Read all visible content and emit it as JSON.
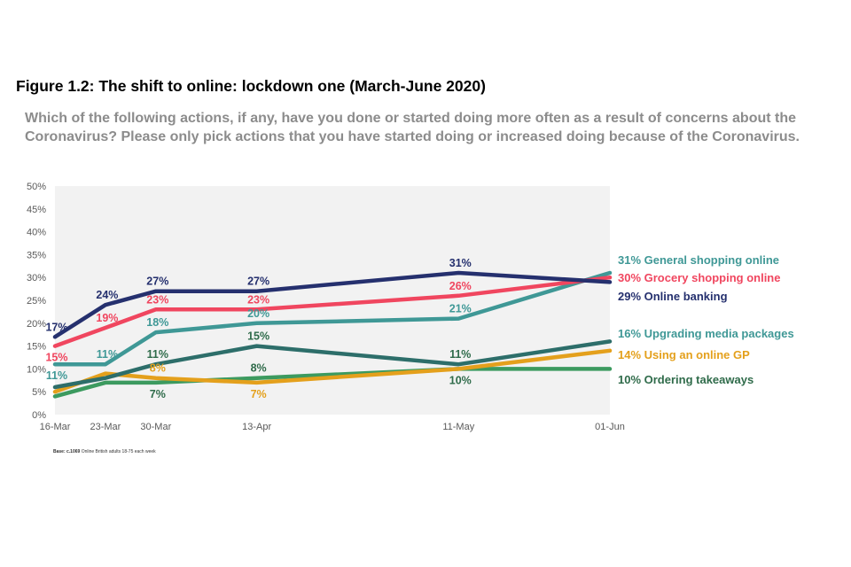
{
  "figure": {
    "title": "Figure 1.2: The shift to online: lockdown one (March-June 2020)",
    "question": "Which of the following actions, if any, have you done or started doing more often as a result of concerns about the Coronavirus? Please only pick actions that you have started doing or increased doing because of the Coronavirus.",
    "base_label": "Base: c.1069",
    "base_text": " Online British adults 18-75 each week"
  },
  "chart_data": {
    "type": "line",
    "title": "The shift to online: lockdown one (March-June 2020)",
    "xlabel": "",
    "ylabel": "",
    "x": [
      "16-Mar",
      "23-Mar",
      "30-Mar",
      "13-Apr",
      "11-May",
      "01-Jun"
    ],
    "x_days": [
      0,
      7,
      14,
      28,
      56,
      77
    ],
    "ylim": [
      0,
      50
    ],
    "yticks": [
      "0%",
      "5%",
      "10%",
      "15%",
      "20%",
      "25%",
      "30%",
      "35%",
      "40%",
      "45%",
      "50%"
    ],
    "grid": false,
    "legend_placement": "right (end labels)",
    "series": [
      {
        "name": "Online banking",
        "color": "#25306e",
        "label_color": "#25306e",
        "values": [
          17,
          24,
          27,
          27,
          31,
          29
        ],
        "labels": [
          {
            "i": 0,
            "text": "17%",
            "pos": "above"
          },
          {
            "i": 1,
            "text": "24%",
            "pos": "above"
          },
          {
            "i": 2,
            "text": "27%",
            "pos": "above"
          },
          {
            "i": 3,
            "text": "27%",
            "pos": "above"
          },
          {
            "i": 4,
            "text": "31%",
            "pos": "above"
          }
        ],
        "end_label": "29% Online banking"
      },
      {
        "name": "Grocery shopping online",
        "color": "#f0465f",
        "label_color": "#f0465f",
        "values": [
          15,
          19,
          23,
          23,
          26,
          30
        ],
        "labels": [
          {
            "i": 0,
            "text": "15%",
            "pos": "below"
          },
          {
            "i": 1,
            "text": "19%",
            "pos": "above"
          },
          {
            "i": 2,
            "text": "23%",
            "pos": "above"
          },
          {
            "i": 3,
            "text": "23%",
            "pos": "above"
          },
          {
            "i": 4,
            "text": "26%",
            "pos": "above"
          }
        ],
        "end_label": "30% Grocery shopping online"
      },
      {
        "name": "General shopping online",
        "color": "#3f9896",
        "label_color": "#3f9896",
        "values": [
          11,
          11,
          18,
          20,
          21,
          31
        ],
        "labels": [
          {
            "i": 0,
            "text": "11%",
            "pos": "below"
          },
          {
            "i": 1,
            "text": "11%",
            "pos": "above"
          },
          {
            "i": 2,
            "text": "18%",
            "pos": "above"
          },
          {
            "i": 3,
            "text": "20%",
            "pos": "above"
          },
          {
            "i": 4,
            "text": "21%",
            "pos": "above"
          }
        ],
        "end_label": "31% General shopping online"
      },
      {
        "name": "Upgrading media packages",
        "color": "#2d6e6a",
        "label_color": "#2f6b4a",
        "values": [
          6,
          8,
          11,
          15,
          11,
          16
        ],
        "labels": [
          {
            "i": 2,
            "text": "11%",
            "pos": "above"
          },
          {
            "i": 3,
            "text": "15%",
            "pos": "above"
          },
          {
            "i": 4,
            "text": "11%",
            "pos": "above"
          }
        ],
        "end_label": "16% Upgrading media packages"
      },
      {
        "name": "Using an online GP",
        "color": "#e4a01c",
        "label_color": "#e4a01c",
        "values": [
          5,
          9,
          8,
          7,
          10,
          14
        ],
        "labels": [
          {
            "i": 2,
            "text": "8%",
            "pos": "above"
          },
          {
            "i": 3,
            "text": "7%",
            "pos": "below"
          }
        ],
        "end_label": "14% Using an online GP"
      },
      {
        "name": "Ordering takeaways",
        "color": "#3c9a5f",
        "label_color": "#2f6b4a",
        "values": [
          4,
          7,
          7,
          8,
          10,
          10
        ],
        "labels": [
          {
            "i": 2,
            "text": "7%",
            "pos": "below"
          },
          {
            "i": 3,
            "text": "8%",
            "pos": "above"
          },
          {
            "i": 4,
            "text": "10%",
            "pos": "below"
          }
        ],
        "end_label": "10% Ordering takeaways"
      }
    ],
    "legend_order": [
      2,
      1,
      0,
      3,
      4,
      5
    ],
    "legend_colors": [
      "#3f9896",
      "#f0465f",
      "#25306e",
      "#3f9896",
      "#e4a01c",
      "#2f6b4a"
    ]
  }
}
